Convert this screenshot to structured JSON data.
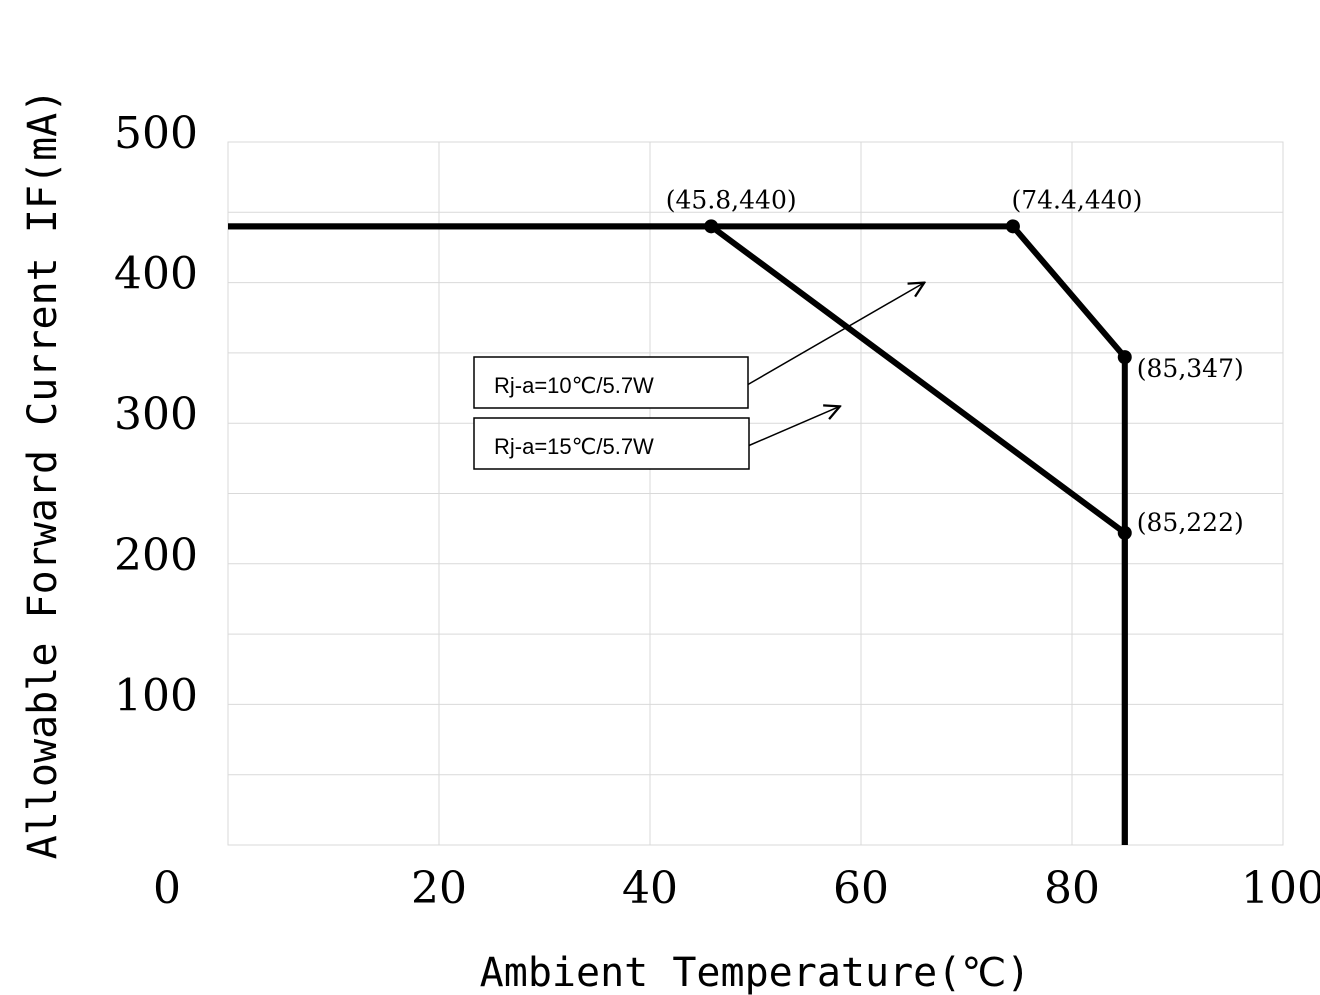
{
  "chart_data": {
    "type": "line",
    "xlabel": "Ambient Temperature(℃)",
    "ylabel": "Allowable Forward Current IF(mA)",
    "xlim": [
      0,
      100
    ],
    "ylim": [
      0,
      500
    ],
    "x_ticks": [
      0,
      20,
      40,
      60,
      80,
      100
    ],
    "x_tick_labels": [
      "0",
      "20",
      "40",
      "60",
      "80",
      "100"
    ],
    "y_ticks": [
      100,
      200,
      300,
      400,
      500
    ],
    "y_tick_labels": [
      "100",
      "200",
      "300",
      "400",
      "500"
    ],
    "grid": true,
    "grid_minor_y": 50,
    "series": [
      {
        "name": "Rj-a=10℃/5.7W",
        "color": "#000000",
        "x": [
          0,
          74.4,
          85,
          85
        ],
        "y": [
          440,
          440,
          347,
          0
        ]
      },
      {
        "name": "Rj-a=15℃/5.7W",
        "color": "#000000",
        "x": [
          0,
          45.8,
          85,
          85
        ],
        "y": [
          440,
          440,
          222,
          0
        ]
      }
    ],
    "annotations": [
      {
        "text": "(45.8,440)",
        "x": 45.8,
        "y": 440
      },
      {
        "text": "(74.4,440)",
        "x": 74.4,
        "y": 440
      },
      {
        "text": "(85,347)",
        "x": 85,
        "y": 347
      },
      {
        "text": "(85,222)",
        "x": 85,
        "y": 222
      }
    ],
    "legend": [
      {
        "label": "Rj-a=10℃/5.7W",
        "series": 0
      },
      {
        "label": "Rj-a=15℃/5.7W",
        "series": 1
      }
    ]
  }
}
